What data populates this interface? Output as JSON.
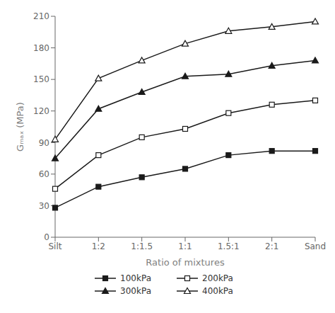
{
  "chart_data": {
    "type": "line",
    "xlabel": "Ratio of mixtures",
    "ylabel": "Gₘₐₓ (MPa)",
    "categories": [
      "Silt",
      "1:2",
      "1:1.5",
      "1:1",
      "1.5:1",
      "2:1",
      "Sand"
    ],
    "series": [
      {
        "name": "100kPa",
        "values": [
          28,
          48,
          57,
          65,
          78,
          82,
          82
        ],
        "marker": "square",
        "color": "#1a1a1a"
      },
      {
        "name": "200kPa",
        "values": [
          46,
          78,
          95,
          103,
          118,
          126,
          130
        ],
        "marker": "square_open",
        "color": "#1a1a1a"
      },
      {
        "name": "300kPa",
        "values": [
          75,
          122,
          138,
          153,
          155,
          163,
          168
        ],
        "marker": "triangle",
        "color": "#1a1a1a"
      },
      {
        "name": "400kPa",
        "values": [
          93,
          151,
          168,
          184,
          196,
          200,
          205
        ],
        "marker": "triangle_open",
        "color": "#1a1a1a"
      }
    ],
    "ylim": [
      0,
      210
    ],
    "yticks": [
      0,
      30,
      60,
      90,
      120,
      150,
      180,
      210
    ],
    "grid": false,
    "legend": "bottom"
  }
}
